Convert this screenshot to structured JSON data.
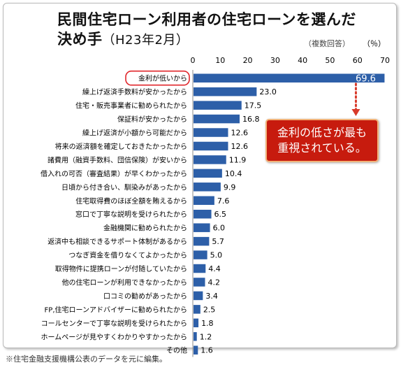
{
  "header": {
    "title_line1": "民間住宅ローン利用者の住宅ローンを選んだ",
    "title_line2_main": "決め手",
    "title_line2_sub": "（H23年2月）",
    "note": "（複数回答）"
  },
  "callout": {
    "line1": "金利の低さが最も",
    "line2": "重視されている。"
  },
  "source": "※住宅金融支援機構公表のデータを元に編集。",
  "colors": {
    "bar": "#2d5fa8",
    "highlight_outline": "#e0262b",
    "callout_bg": "#c71b0e",
    "dotted_arrow": "#d83a2a"
  },
  "chart_data": {
    "type": "bar",
    "orientation": "horizontal",
    "unit": "（％）",
    "xlim": [
      0,
      70
    ],
    "xticks": [
      0,
      10,
      20,
      30,
      40,
      50,
      60,
      70
    ],
    "grid": false,
    "highlight_index": 0,
    "categories": [
      "金利が低いから",
      "繰上げ返済手数料が安かったから",
      "住宅・販売事業者に勧められたから",
      "保証料が安かったから",
      "繰上げ返済が小額から可能だから",
      "将来の返済額を確定しておきたかったから",
      "諸費用（融資手数料、団信保険）が安いから",
      "借入れの可否（審査結果）が早くわかったから",
      "日頃から付き合い、馴染みがあったから",
      "住宅取得費のほぼ全額を賄えるから",
      "窓口で丁寧な説明を受けられたから",
      "金融機関に勧められたから",
      "返済中も相談できるサポート体制があるから",
      "つなぎ資金を借りなくてよかったから",
      "取得物件に提携ローンが付随していたから",
      "他の住宅ローンが利用できなかったから",
      "口コミの勧めがあったから",
      "FP,住宅ローンアドバイザーに勧められたから",
      "コールセンターで丁寧な説明を受けられたから",
      "ホームページが見やすくわかりやすかったから",
      "その他"
    ],
    "values": [
      69.6,
      23.0,
      17.5,
      16.8,
      12.6,
      12.6,
      11.9,
      10.4,
      9.9,
      7.6,
      6.5,
      6.0,
      5.7,
      5.0,
      4.4,
      4.2,
      3.4,
      2.5,
      1.8,
      1.2,
      1.6
    ],
    "value_labels": [
      "69.6",
      "23.0",
      "17.5",
      "16.8",
      "12.6",
      "12.6",
      "11.9",
      "10.4",
      "9.9",
      "7.6",
      "6.5",
      "6.0",
      "5.7",
      "5.0",
      "4.4",
      "4.2",
      "3.4",
      "2.5",
      "1.8",
      "1.2",
      "1.6"
    ]
  }
}
